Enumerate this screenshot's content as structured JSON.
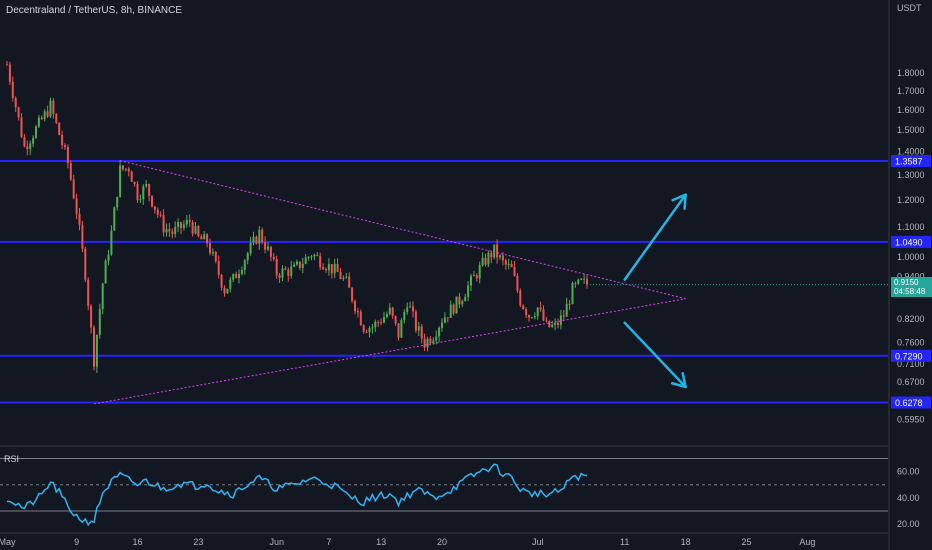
{
  "header": {
    "title": "Decentraland / TetherUS, 8h, BINANCE",
    "currency": "USDT",
    "rsi_label": "RSI"
  },
  "colors": {
    "background": "#131722",
    "up": "#26a69a",
    "up_candle": "#4caf50",
    "down_candle": "#ef5350",
    "level_line": "#2424ff",
    "triangle": "#e040fb",
    "arrow": "#1fb6e6",
    "rsi_line": "#29b6f6"
  },
  "current_price": {
    "price": "0.9150",
    "countdown": "04:58:48",
    "value": 0.915
  },
  "chart_data": {
    "type": "candlestick",
    "pair": "Decentraland / TetherUS",
    "timeframe": "8h",
    "exchange": "BINANCE",
    "ylabel": "USDT",
    "ylim": [
      0.56,
      2.0
    ],
    "y_scale": "log",
    "y_ticks": [
      "1.8000",
      "1.7000",
      "1.6000",
      "1.5000",
      "1.4000",
      "1.3000",
      "1.2000",
      "1.1000",
      "1.0000",
      "0.9400",
      "0.8200",
      "0.7600",
      "0.7100",
      "0.6700",
      "0.5950"
    ],
    "x_ticks": [
      "May",
      "9",
      "16",
      "23",
      "Jun",
      "7",
      "13",
      "20",
      "Jul",
      "11",
      "18",
      "25",
      "Aug"
    ],
    "price_path": [
      [
        "May 1",
        1.85
      ],
      [
        "May 3",
        1.42
      ],
      [
        "May 5",
        1.55
      ],
      [
        "May 6",
        1.62
      ],
      [
        "May 7",
        1.48
      ],
      [
        "May 8",
        1.35
      ],
      [
        "May 9",
        1.16
      ],
      [
        "May 10",
        0.95
      ],
      [
        "May 11",
        0.72
      ],
      [
        "May 12",
        0.92
      ],
      [
        "May 13",
        1.08
      ],
      [
        "May 14",
        1.32
      ],
      [
        "May 15",
        1.33
      ],
      [
        "May 16",
        1.22
      ],
      [
        "May 17",
        1.25
      ],
      [
        "May 19",
        1.1
      ],
      [
        "May 20",
        1.08
      ],
      [
        "May 22",
        1.12
      ],
      [
        "May 23",
        1.06
      ],
      [
        "May 24",
        1.05
      ],
      [
        "May 26",
        0.9
      ],
      [
        "May 27",
        0.93
      ],
      [
        "May 28",
        0.98
      ],
      [
        "May 30",
        1.08
      ],
      [
        "May 31",
        1.02
      ],
      [
        "Jun 1",
        0.95
      ],
      [
        "Jun 3",
        0.96
      ],
      [
        "Jun 5",
        1.01
      ],
      [
        "Jun 6",
        0.99
      ],
      [
        "Jun 8",
        0.95
      ],
      [
        "Jun 9",
        0.92
      ],
      [
        "Jun 11",
        0.8
      ],
      [
        "Jun 12",
        0.8
      ],
      [
        "Jun 14",
        0.84
      ],
      [
        "Jun 15",
        0.78
      ],
      [
        "Jun 16",
        0.87
      ],
      [
        "Jun 17",
        0.8
      ],
      [
        "Jun 18",
        0.76
      ],
      [
        "Jun 19",
        0.78
      ],
      [
        "Jun 20",
        0.82
      ],
      [
        "Jun 22",
        0.87
      ],
      [
        "Jun 23",
        0.91
      ],
      [
        "Jun 25",
        0.99
      ],
      [
        "Jun 26",
        1.02
      ],
      [
        "Jun 27",
        0.98
      ],
      [
        "Jun 28",
        0.96
      ],
      [
        "Jun 29",
        0.87
      ],
      [
        "Jun 30",
        0.83
      ],
      [
        "Jul 1",
        0.85
      ],
      [
        "Jul 2",
        0.8
      ],
      [
        "Jul 3",
        0.8
      ],
      [
        "Jul 4",
        0.83
      ],
      [
        "Jul 5",
        0.9
      ],
      [
        "Jul 6",
        0.92
      ],
      [
        "Jul 7",
        0.915
      ]
    ],
    "levels": [
      {
        "label": "1.3587",
        "value": 1.3587
      },
      {
        "label": "1.0490",
        "value": 1.049
      },
      {
        "label": "0.7290",
        "value": 0.729
      },
      {
        "label": "0.6278",
        "value": 0.6278
      }
    ],
    "triangle": {
      "upper": [
        [
          "May 14",
          1.36
        ],
        [
          "Jul 18",
          0.875
        ]
      ],
      "lower": [
        [
          "May 11",
          0.625
        ],
        [
          "Jul 18",
          0.875
        ]
      ]
    },
    "arrows": [
      {
        "direction": "up",
        "from": [
          "Jul 11",
          0.93
        ],
        "to": [
          "Jul 18",
          1.22
        ]
      },
      {
        "direction": "down",
        "from": [
          "Jul 11",
          0.81
        ],
        "to": [
          "Jul 18",
          0.66
        ]
      }
    ],
    "rsi": {
      "name": "RSI",
      "ylim": [
        14,
        78
      ],
      "ticks": [
        "60.00",
        "40.00",
        "20.00"
      ],
      "bands": [
        70,
        50,
        30
      ],
      "path": [
        [
          "May 1",
          40
        ],
        [
          "May 3",
          32
        ],
        [
          "May 5",
          42
        ],
        [
          "May 6",
          52
        ],
        [
          "May 7",
          44
        ],
        [
          "May 8",
          33
        ],
        [
          "May 9",
          26
        ],
        [
          "May 10",
          22
        ],
        [
          "May 11",
          23
        ],
        [
          "May 12",
          44
        ],
        [
          "May 13",
          52
        ],
        [
          "May 14",
          57
        ],
        [
          "May 16",
          50
        ],
        [
          "May 17",
          53
        ],
        [
          "May 19",
          47
        ],
        [
          "May 21",
          51
        ],
        [
          "May 23",
          49
        ],
        [
          "May 24",
          52
        ],
        [
          "May 25",
          46
        ],
        [
          "May 27",
          43
        ],
        [
          "May 29",
          52
        ],
        [
          "May 30",
          55
        ],
        [
          "Jun 1",
          47
        ],
        [
          "Jun 3",
          50
        ],
        [
          "Jun 5",
          55
        ],
        [
          "Jun 7",
          51
        ],
        [
          "Jun 8",
          48
        ],
        [
          "Jun 9",
          42
        ],
        [
          "Jun 11",
          37
        ],
        [
          "Jun 12",
          40
        ],
        [
          "Jun 14",
          43
        ],
        [
          "Jun 15",
          37
        ],
        [
          "Jun 17",
          46
        ],
        [
          "Jun 18",
          44
        ],
        [
          "Jun 19",
          40
        ],
        [
          "Jun 21",
          46
        ],
        [
          "Jun 23",
          55
        ],
        [
          "Jun 25",
          62
        ],
        [
          "Jun 26",
          64
        ],
        [
          "Jun 27",
          59
        ],
        [
          "Jun 28",
          55
        ],
        [
          "Jun 29",
          47
        ],
        [
          "Jun 30",
          43
        ],
        [
          "Jul 1",
          44
        ],
        [
          "Jul 2",
          42
        ],
        [
          "Jul 3",
          44
        ],
        [
          "Jul 4",
          47
        ],
        [
          "Jul 5",
          57
        ],
        [
          "Jul 6",
          56
        ],
        [
          "Jul 7",
          57
        ]
      ]
    }
  }
}
